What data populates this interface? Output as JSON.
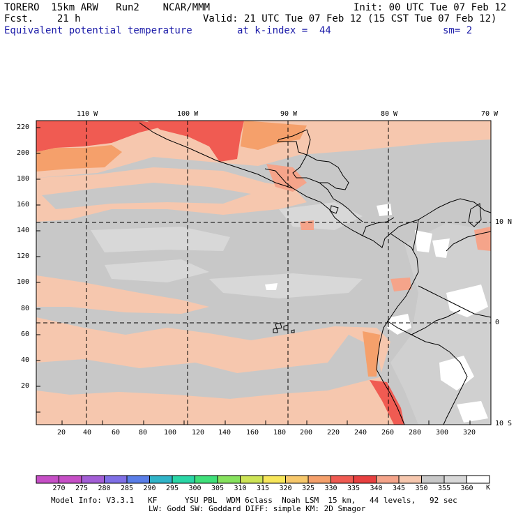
{
  "header": {
    "model": "TORERO  15km ARW   Run2    NCAR/MMM",
    "init": "Init: 00 UTC Tue 07 Feb 12",
    "fcst": "Fcst.    21 h",
    "valid": "Valid: 21 UTC Tue 07 Feb 12 (15 CST Tue 07 Feb 12)",
    "field": "Equivalent potential temperature",
    "level": "at k-index =  44",
    "smooth": "sm= 2"
  },
  "map": {
    "lon_labels": [
      "110 W",
      "100 W",
      "90 W",
      "80 W",
      "70 W"
    ],
    "lat_labels": [
      "10 N",
      "0",
      "10 S"
    ],
    "x_ticks": [
      "20",
      "40",
      "60",
      "80",
      "100",
      "120",
      "140",
      "160",
      "180",
      "200",
      "220",
      "240",
      "260",
      "280",
      "300",
      "320"
    ],
    "y_ticks": [
      "20",
      "40",
      "60",
      "80",
      "100",
      "120",
      "140",
      "160",
      "180",
      "200",
      "220"
    ]
  },
  "colorbar": {
    "labels": [
      "270",
      "275",
      "280",
      "285",
      "290",
      "295",
      "300",
      "305",
      "310",
      "315",
      "320",
      "325",
      "330",
      "335",
      "340",
      "345",
      "350",
      "355",
      "360"
    ],
    "unit": "K",
    "colors": [
      "#c64fc6",
      "#a35ed6",
      "#7f6fe6",
      "#5a7ee8",
      "#30b4c8",
      "#2ad6a6",
      "#3fe07a",
      "#86e25e",
      "#cde456",
      "#f7e65a",
      "#f7c86b",
      "#f5a06b",
      "#f05b52",
      "#e84040",
      "#f5a48a",
      "#f6c7ae",
      "#c8c8c8",
      "#d8d8d8",
      "#ffffff"
    ]
  },
  "footer": {
    "line1": "Model Info: V3.3.1   KF      YSU PBL  WDM 6class  Noah LSM  15 km,   44 levels,   92 sec",
    "line2": "LW: Godd SW: Goddard DIFF: simple KM: 2D Smagor"
  }
}
